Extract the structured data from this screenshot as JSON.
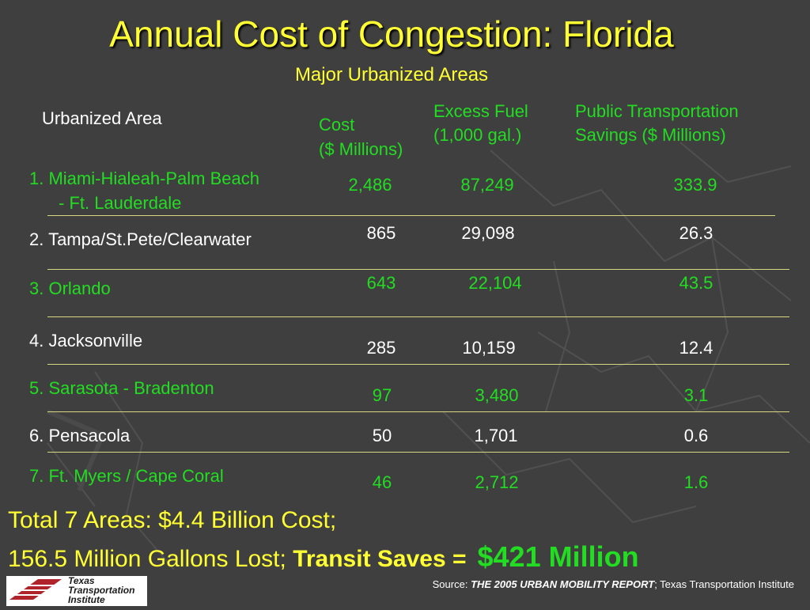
{
  "title": "Annual Cost of Congestion: Florida",
  "subtitle": "Major Urbanized Areas",
  "headers": {
    "area": "Urbanized Area",
    "cost_line1": "Cost",
    "cost_line2": "($ Millions)",
    "fuel_line1": "Excess Fuel",
    "fuel_line2": "(1,000 gal.)",
    "pt_line1": "Public Transportation",
    "pt_line2": "Savings ($ Millions)"
  },
  "rows": [
    {
      "area_line1": "1.  Miami-Hialeah-Palm Beach",
      "area_line2": "- Ft. Lauderdale",
      "cost": "2,486",
      "fuel": "87,249",
      "savings": "333.9"
    },
    {
      "area": "2. Tampa/St.Pete/Clearwater",
      "cost": "865",
      "fuel": "29,098",
      "savings": "26.3"
    },
    {
      "area": "3. Orlando",
      "cost": "643",
      "fuel": "22,104",
      "savings": "43.5"
    },
    {
      "area": "4. Jacksonville",
      "cost": "285",
      "fuel": "10,159",
      "savings": "12.4"
    },
    {
      "area": "5. Sarasota - Bradenton",
      "cost": "97",
      "fuel": "3,480",
      "savings": "3.1"
    },
    {
      "area": "6. Pensacola",
      "cost": "50",
      "fuel": "1,701",
      "savings": "0.6"
    },
    {
      "area": "7. Ft. Myers / Cape Coral",
      "cost": "46",
      "fuel": "2,712",
      "savings": "1.6"
    }
  ],
  "summary": {
    "line1": "Total 7 Areas: $4.4 Billion Cost;",
    "line2_prefix": "156.5 Million Gallons Lost; ",
    "line2_bold": "Transit Saves =",
    "line2_amount": "$421 Million"
  },
  "source": {
    "label": "Source: ",
    "report": "THE 2005 URBAN MOBILITY REPORT",
    "org": "; Texas Transportation Institute"
  },
  "logo": {
    "line1": "Texas",
    "line2": "Transportation",
    "line3": "Institute"
  },
  "colors": {
    "background": "#3f3f3f",
    "title": "#ffff33",
    "highlight": "#22dd22",
    "text": "#ffffff",
    "rule": "#d8d880",
    "logo_red": "#b0232a"
  }
}
